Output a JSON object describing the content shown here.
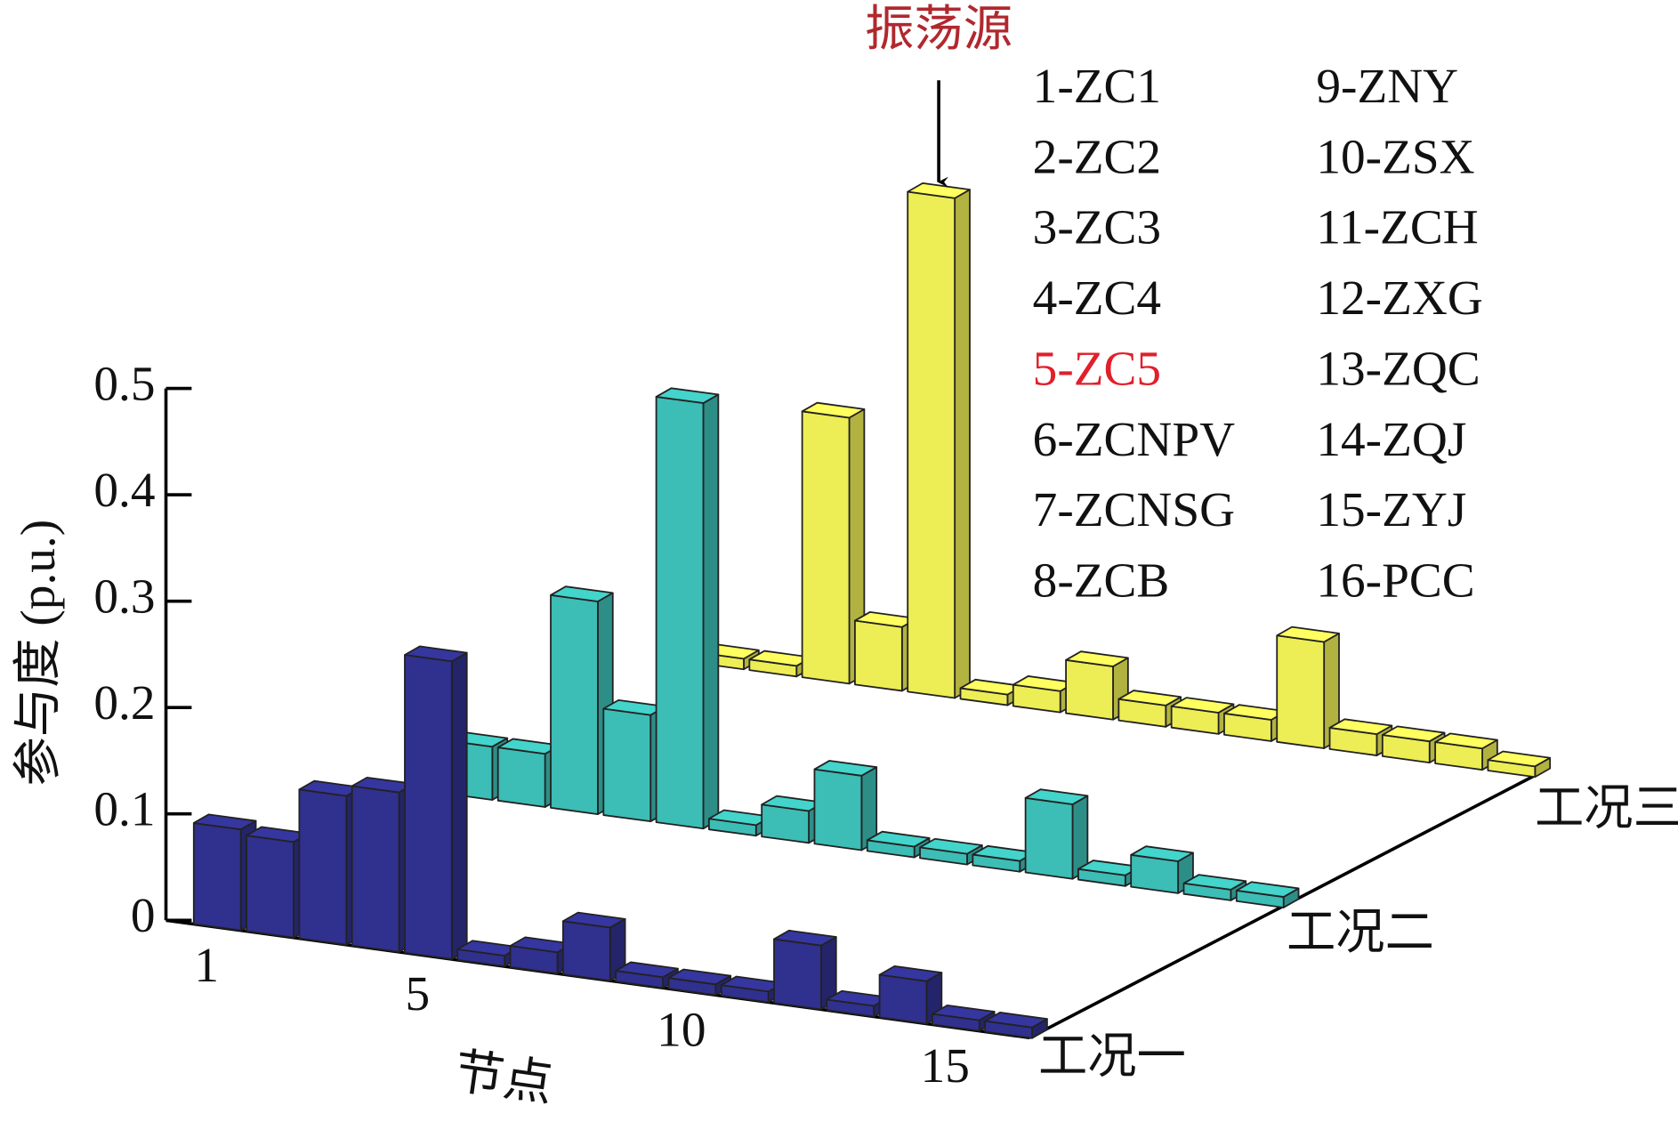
{
  "chart_data": {
    "type": "bar3d",
    "zlabel": "参与度 (p.u.)",
    "xlabel": "节点",
    "x": [
      1,
      2,
      3,
      4,
      5,
      6,
      7,
      8,
      9,
      10,
      11,
      12,
      13,
      14,
      15,
      16
    ],
    "xticks": [
      1,
      5,
      10,
      15
    ],
    "zlim": [
      0,
      0.5
    ],
    "zticks": [
      0,
      0.1,
      0.2,
      0.3,
      0.4,
      0.5
    ],
    "series": [
      {
        "name": "工况一",
        "color": "#30308f",
        "values": [
          0.095,
          0.09,
          0.14,
          0.15,
          0.28,
          0.01,
          0.02,
          0.05,
          0.01,
          0.01,
          0.01,
          0.06,
          0.01,
          0.04,
          0.01,
          0.01
        ]
      },
      {
        "name": "工况二",
        "color": "#3cbdb5",
        "values": [
          0.05,
          0.05,
          0.2,
          0.1,
          0.4,
          0.01,
          0.03,
          0.07,
          0.01,
          0.01,
          0.01,
          0.07,
          0.01,
          0.03,
          0.01,
          0.01
        ]
      },
      {
        "name": "工况三",
        "color": "#eded55",
        "values": [
          0.01,
          0.01,
          0.25,
          0.06,
          0.47,
          0.01,
          0.02,
          0.05,
          0.02,
          0.02,
          0.02,
          0.1,
          0.02,
          0.02,
          0.02,
          0.01
        ]
      }
    ],
    "node_legend": [
      "1-ZC1",
      "2-ZC2",
      "3-ZC3",
      "4-ZC4",
      "5-ZC5",
      "6-ZCNPV",
      "7-ZCNSG",
      "8-ZCB",
      "9-ZNY",
      "10-ZSX",
      "11-ZCH",
      "12-ZXG",
      "13-ZQC",
      "14-ZQJ",
      "15-ZYJ",
      "16-PCC"
    ],
    "node_legend_highlight": 4,
    "highlight_color": "#e0202a",
    "annotation": {
      "text": "振荡源",
      "color": "#b0282e",
      "series": 2,
      "node": 4
    }
  }
}
